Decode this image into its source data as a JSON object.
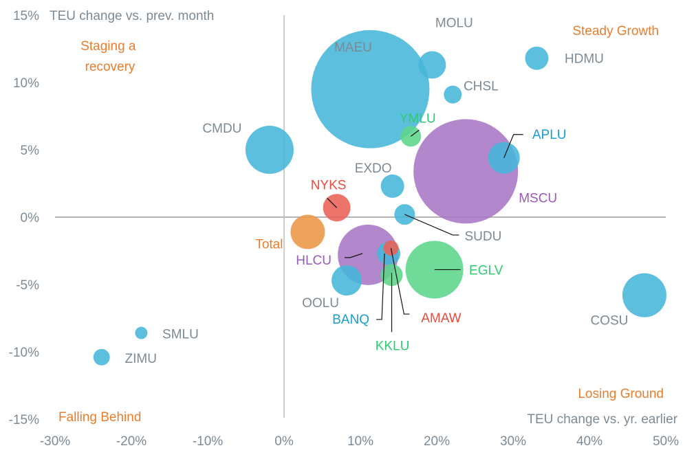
{
  "chart_data": {
    "type": "scatter",
    "subtype": "bubble",
    "xlabel": "TEU change vs. yr. earlier",
    "ylabel": "TEU change vs. prev. month",
    "xlim": [
      -30,
      50
    ],
    "ylim": [
      -15,
      15
    ],
    "x_ticks": [
      -30,
      -20,
      -10,
      0,
      10,
      20,
      30,
      40,
      50
    ],
    "y_ticks": [
      15,
      10,
      5,
      0,
      -5,
      -10,
      -15
    ],
    "x_tick_labels": [
      "-30%",
      "-20%",
      "-10%",
      "0%",
      "10%",
      "20%",
      "30%",
      "40%",
      "50%"
    ],
    "y_tick_labels": [
      "15%",
      "10%",
      "5%",
      "0%",
      "-5%",
      "-10%",
      "-15%"
    ],
    "grid": false,
    "zero_lines": true,
    "colors": {
      "blue": "#45b6da",
      "purple": "#a876c4",
      "green": "#5cd68b",
      "red": "#ea6155",
      "orange": "#eb9646",
      "gray_label": "#7d8a93",
      "orange_label": "#e87d2d",
      "purple_label": "#9b59b6",
      "green_label": "#2ecc71",
      "blue_label": "#1a9ed1",
      "red_label": "#e74c3c"
    },
    "quadrant_labels": [
      {
        "text": "Steady Growth",
        "position": "top-right"
      },
      {
        "text": "Staging a recovery",
        "position": "top-left"
      },
      {
        "text": "Losing Ground",
        "position": "bottom-right"
      },
      {
        "text": "Falling Behind",
        "position": "bottom-left"
      }
    ],
    "points": [
      {
        "name": "MAEU",
        "x": 11.3,
        "y": 9.5,
        "size": 86,
        "color": "blue",
        "label_color": "gray_label"
      },
      {
        "name": "MOLU",
        "x": 19.4,
        "y": 11.3,
        "size": 20,
        "color": "blue",
        "label_color": "gray_label"
      },
      {
        "name": "CHSL",
        "x": 22.1,
        "y": 9.1,
        "size": 13,
        "color": "blue",
        "label_color": "gray_label"
      },
      {
        "name": "HDMU",
        "x": 33.1,
        "y": 11.8,
        "size": 17,
        "color": "blue",
        "label_color": "gray_label"
      },
      {
        "name": "CMDU",
        "x": -1.9,
        "y": 5.0,
        "size": 35,
        "color": "blue",
        "label_color": "gray_label"
      },
      {
        "name": "MSCU",
        "x": 23.8,
        "y": 3.4,
        "size": 76,
        "color": "purple",
        "label_color": "purple_label"
      },
      {
        "name": "YMLU",
        "x": 16.6,
        "y": 6.0,
        "size": 15,
        "color": "green",
        "label_color": "green_label"
      },
      {
        "name": "APLU",
        "x": 28.8,
        "y": 4.4,
        "size": 23,
        "color": "blue",
        "label_color": "blue_label"
      },
      {
        "name": "EXDO",
        "x": 14.2,
        "y": 2.3,
        "size": 17,
        "color": "blue",
        "label_color": "gray_label"
      },
      {
        "name": "NYKS",
        "x": 6.9,
        "y": 0.7,
        "size": 20,
        "color": "red",
        "label_color": "red_label"
      },
      {
        "name": "SUDU",
        "x": 15.8,
        "y": 0.2,
        "size": 15,
        "color": "blue",
        "label_color": "gray_label"
      },
      {
        "name": "Total",
        "x": 3.1,
        "y": -1.1,
        "size": 25,
        "color": "orange",
        "label_color": "orange_label"
      },
      {
        "name": "HLCU",
        "x": 11.0,
        "y": -2.8,
        "size": 44,
        "color": "purple",
        "label_color": "purple_label"
      },
      {
        "name": "EGLV",
        "x": 19.7,
        "y": -3.9,
        "size": 42,
        "color": "green",
        "label_color": "green_label"
      },
      {
        "name": "OOLU",
        "x": 8.2,
        "y": -4.7,
        "size": 22,
        "color": "blue",
        "label_color": "gray_label"
      },
      {
        "name": "BANQ",
        "x": 13.7,
        "y": -2.7,
        "size": 17,
        "color": "blue",
        "label_color": "blue_label"
      },
      {
        "name": "KKLU",
        "x": 14.1,
        "y": -4.3,
        "size": 16,
        "color": "green",
        "label_color": "green_label"
      },
      {
        "name": "AMAW",
        "x": 14.0,
        "y": -2.3,
        "size": 11,
        "color": "red",
        "label_color": "red_label"
      },
      {
        "name": "COSU",
        "x": 47.2,
        "y": -5.8,
        "size": 32,
        "color": "blue",
        "label_color": "gray_label"
      },
      {
        "name": "SMLU",
        "x": -18.7,
        "y": -8.6,
        "size": 9,
        "color": "blue",
        "label_color": "gray_label"
      },
      {
        "name": "ZIMU",
        "x": -23.9,
        "y": -10.4,
        "size": 12,
        "color": "blue",
        "label_color": "gray_label"
      }
    ]
  }
}
